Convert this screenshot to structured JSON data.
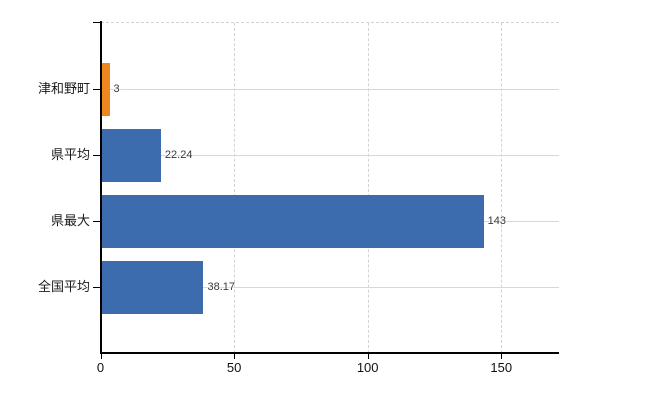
{
  "chart_data": {
    "type": "bar",
    "orientation": "horizontal",
    "title": "",
    "categories": [
      "津和野町",
      "県平均",
      "県最大",
      "全国平均"
    ],
    "values": [
      3,
      22.24,
      143,
      38.17
    ],
    "value_labels": [
      "3",
      "22.24",
      "143",
      "38.17"
    ],
    "bar_colors": [
      "#ee871e",
      "#3c6cad",
      "#3c6cad",
      "#3c6cad"
    ],
    "x_ticks": [
      0,
      50,
      100,
      150
    ],
    "x_tick_labels": [
      "0",
      "50",
      "100",
      "150"
    ],
    "xlim": [
      0,
      171.6
    ],
    "ylabel": "",
    "xlabel": "",
    "legend": null,
    "grid": {
      "horizontal": true,
      "vertical": true,
      "top_border": "dashed"
    },
    "colors": {
      "bar_default": "#3c6cad",
      "bar_highlight": "#ee871e",
      "gridline": "#d7d7d7",
      "axis": "#000000",
      "value_label": "#383838",
      "category_label": "#1a1a1a",
      "background": "#ffffff"
    }
  }
}
